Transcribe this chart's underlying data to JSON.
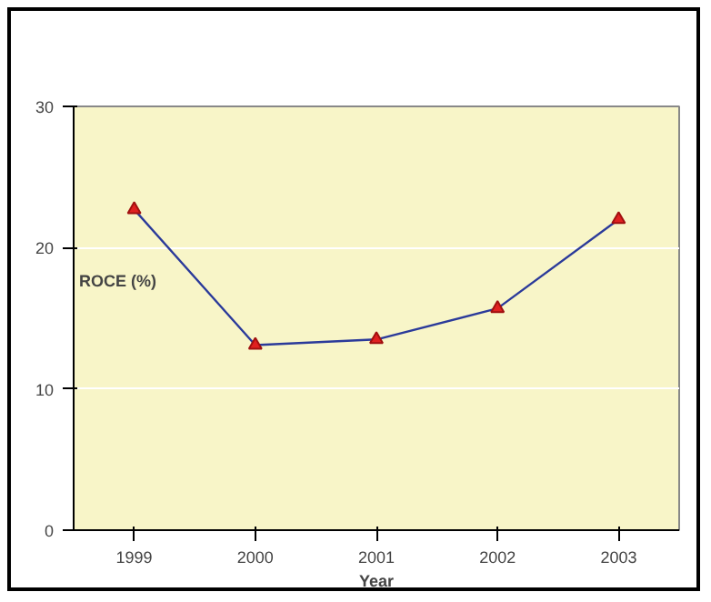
{
  "chart_data": {
    "type": "line",
    "xlabel": "Year",
    "ylabel": "ROCE (%)",
    "categories": [
      "1999",
      "2000",
      "2001",
      "2002",
      "2003"
    ],
    "series": [
      {
        "color": "#2b3a9a",
        "values": [
          22.7,
          13.1,
          13.5,
          15.7,
          22.0
        ]
      }
    ],
    "ylim": [
      0,
      30
    ],
    "yticks": [
      0,
      10,
      20,
      30
    ],
    "grid": "y",
    "marker": "triangle",
    "line_style": "solid"
  }
}
